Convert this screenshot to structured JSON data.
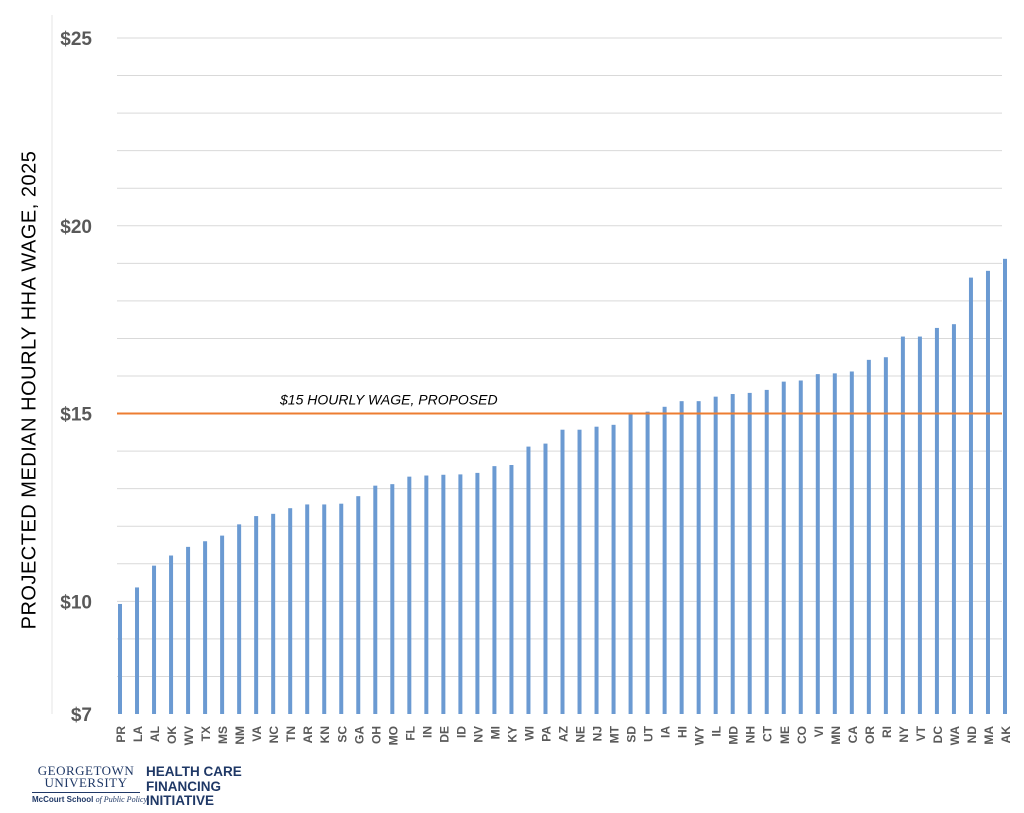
{
  "chart_data": {
    "type": "bar",
    "ylabel": "PROJECTED MEDIAN HOURLY HHA WAGE, 2025",
    "xlabel": "",
    "ylim": [
      7,
      25
    ],
    "ytick_values": [
      7,
      10,
      15,
      20,
      25
    ],
    "ytick_labels": [
      "$7",
      "$10",
      "$15",
      "$20",
      "$25"
    ],
    "grid": true,
    "categories": [
      "PR",
      "LA",
      "AL",
      "OK",
      "WV",
      "TX",
      "MS",
      "NM",
      "VA",
      "NC",
      "TN",
      "AR",
      "KN",
      "SC",
      "GA",
      "OH",
      "MO",
      "FL",
      "IN",
      "DE",
      "ID",
      "NV",
      "MI",
      "KY",
      "WI",
      "PA",
      "AZ",
      "NE",
      "NJ",
      "MT",
      "SD",
      "UT",
      "IA",
      "HI",
      "WY",
      "IL",
      "MD",
      "NH",
      "CT",
      "ME",
      "CO",
      "VI",
      "MN",
      "CA",
      "OR",
      "RI",
      "NY",
      "VT",
      "DC",
      "WA",
      "ND",
      "MA",
      "AK"
    ],
    "values": [
      9.93,
      10.37,
      10.95,
      11.22,
      11.45,
      11.6,
      11.75,
      12.05,
      12.27,
      12.33,
      12.48,
      12.58,
      12.58,
      12.6,
      12.8,
      13.08,
      13.12,
      13.32,
      13.35,
      13.37,
      13.38,
      13.42,
      13.6,
      13.63,
      14.12,
      14.2,
      14.57,
      14.57,
      14.65,
      14.7,
      15.0,
      15.05,
      15.18,
      15.33,
      15.33,
      15.45,
      15.52,
      15.55,
      15.63,
      15.85,
      15.88,
      16.05,
      16.07,
      16.12,
      16.43,
      16.5,
      17.05,
      17.05,
      17.28,
      17.38,
      18.62,
      18.8,
      19.12
    ],
    "bar_color": "#6b9ad2",
    "reference_line": {
      "value": 15,
      "label": "$15 HOURLY WAGE, PROPOSED",
      "color": "#ed7d31"
    }
  },
  "logo": {
    "university_line1": "GEORGETOWN",
    "university_line2": "UNIVERSITY",
    "school_name": "McCourt School",
    "school_suffix": "of Public Policy",
    "initiative_lines": [
      "HEALTH CARE",
      "FINANCING",
      "INITIATIVE"
    ],
    "color": "#1f3866"
  }
}
